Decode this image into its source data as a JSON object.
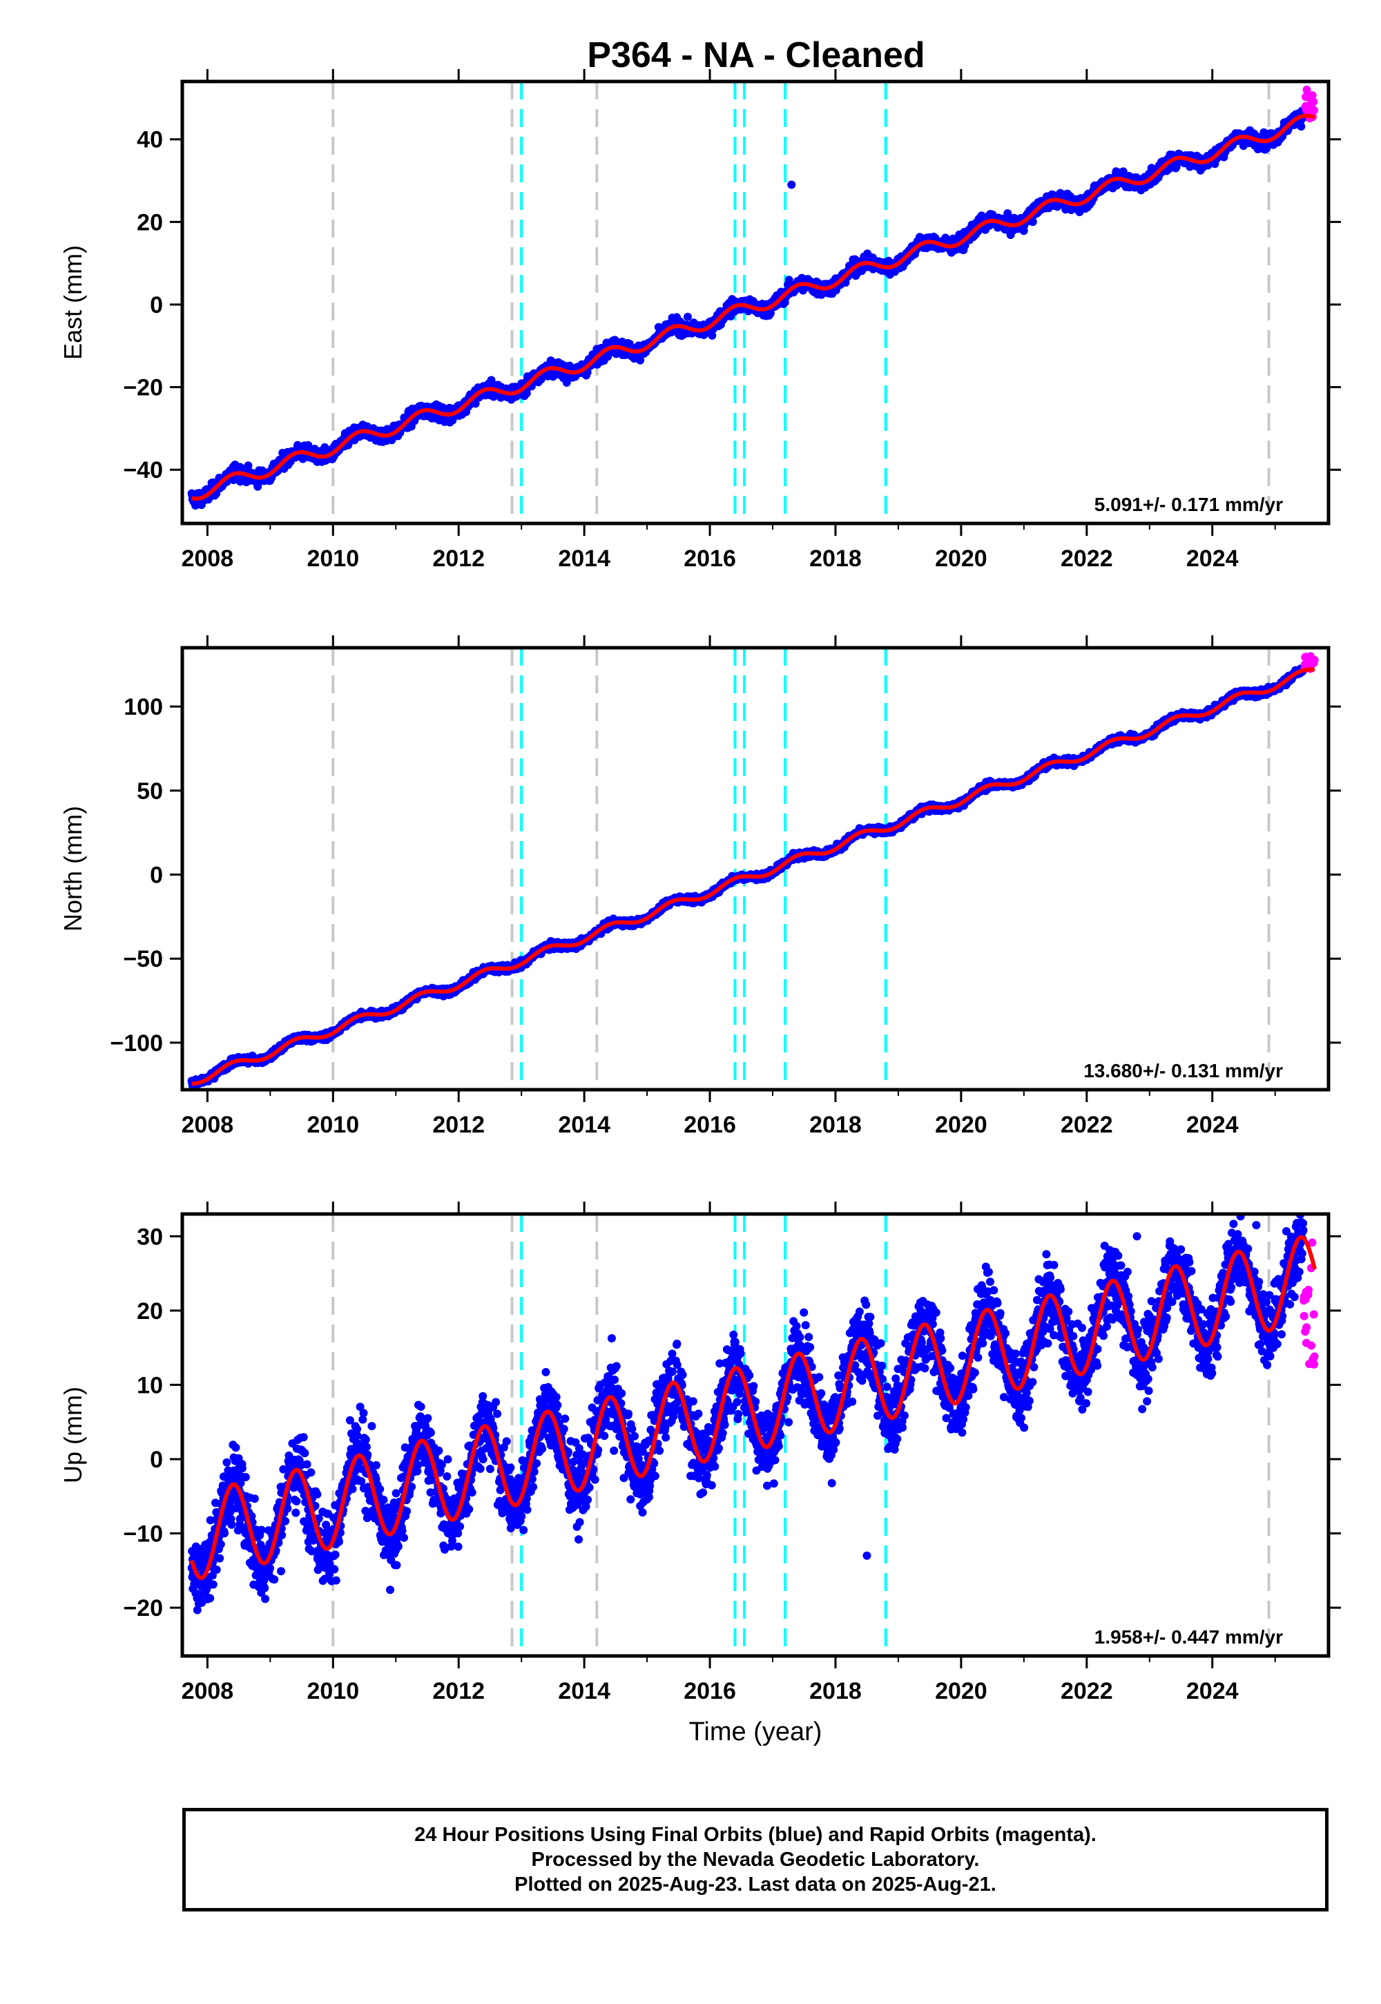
{
  "chart_data": [
    {
      "type": "scatter",
      "title": "P364  - NA - Cleaned",
      "ylabel": "East (mm)",
      "xlabel": "",
      "xlim": [
        2007.6,
        2025.85
      ],
      "ylim": [
        -53,
        54
      ],
      "xticks": [
        2008,
        2010,
        2012,
        2014,
        2016,
        2018,
        2020,
        2022,
        2024
      ],
      "yticks": [
        -40,
        -20,
        0,
        20,
        40
      ],
      "ytick_labels": [
        "−40",
        "−20",
        "0",
        "20",
        "40"
      ],
      "rate": "5.091+/- 0.171 mm/yr",
      "model": {
        "t0": 2007.75,
        "y0": -46,
        "slope": 5.091,
        "annual_amp": 1.6,
        "offsets": [
          {
            "x": 2016.45,
            "dy": -3
          }
        ]
      },
      "scatter_noise": 1.2,
      "outliers": [
        {
          "x": 2017.3,
          "y": 29
        }
      ],
      "rapid_points": {
        "x_start": 2025.45,
        "x_end": 2025.63,
        "y_min": 45,
        "y_max": 52
      }
    },
    {
      "type": "scatter",
      "title": "",
      "ylabel": "North (mm)",
      "xlabel": "",
      "xlim": [
        2007.6,
        2025.85
      ],
      "ylim": [
        -128,
        135
      ],
      "xticks": [
        2008,
        2010,
        2012,
        2014,
        2016,
        2018,
        2020,
        2022,
        2024
      ],
      "yticks": [
        -100,
        -50,
        0,
        50,
        100
      ],
      "ytick_labels": [
        "−100",
        "−50",
        "0",
        "50",
        "100"
      ],
      "rate": "13.680+/- 0.131 mm/yr",
      "model": {
        "t0": 2007.75,
        "y0": -123,
        "slope": 13.68,
        "annual_amp": 2.5,
        "offsets": []
      },
      "scatter_noise": 1.5,
      "outliers": [],
      "rapid_points": {
        "x_start": 2025.45,
        "x_end": 2025.63,
        "y_min": 122,
        "y_max": 131
      }
    },
    {
      "type": "scatter",
      "title": "",
      "ylabel": "Up (mm)",
      "xlabel": "Time (year)",
      "xlim": [
        2007.6,
        2025.85
      ],
      "ylim": [
        -26.5,
        33
      ],
      "xticks": [
        2008,
        2010,
        2012,
        2014,
        2016,
        2018,
        2020,
        2022,
        2024
      ],
      "yticks": [
        -20,
        -10,
        0,
        10,
        20,
        30
      ],
      "ytick_labels": [
        "−20",
        "−10",
        "0",
        "10",
        "20",
        "30"
      ],
      "rate": "1.958+/- 0.447 mm/yr",
      "model": {
        "t0": 2007.75,
        "y0": -10.5,
        "slope": 1.958,
        "annual_amp": 5.8,
        "offsets": []
      },
      "scatter_noise": 3.5,
      "outliers": [
        {
          "x": 2018.5,
          "y": -13
        },
        {
          "x": 2024.7,
          "y": 31.5
        },
        {
          "x": 2022.8,
          "y": 30
        }
      ],
      "rapid_points": {
        "x_start": 2025.45,
        "x_end": 2025.63,
        "y_min": 12,
        "y_max": 31
      }
    }
  ],
  "event_lines": {
    "gray": [
      2010.0,
      2012.85,
      2014.2,
      2024.9
    ],
    "cyan": [
      2013.0,
      2016.4,
      2016.55,
      2017.2,
      2018.8
    ]
  },
  "colors": {
    "final_orbits": "#0000ff",
    "rapid_orbits": "#ff00ff",
    "model_fit": "#ff0000",
    "equipment_change": "#c8c8c8",
    "earthquake": "#00ffff"
  },
  "footnote": {
    "line1": "24 Hour Positions Using Final Orbits (blue) and Rapid Orbits (magenta).",
    "line2": "Processed by the Nevada Geodetic Laboratory.",
    "line3": "Plotted on 2025-Aug-23. Last data on 2025-Aug-21."
  }
}
